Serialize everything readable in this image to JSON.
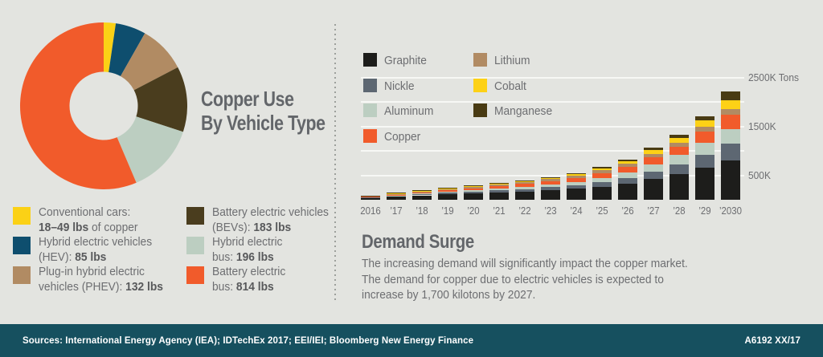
{
  "page": {
    "background": "#e3e4e0",
    "footer_background": "#16505f"
  },
  "donut_section": {
    "title_line1": "Copper Use",
    "title_line2": "By Vehicle Type",
    "legend": [
      {
        "color": "#fbd116",
        "lines": [
          [
            {
              "t": "Conventional cars:",
              "b": false
            }
          ],
          [
            {
              "t": "18–49 lbs",
              "b": true
            },
            {
              "t": " of copper",
              "b": false
            }
          ]
        ]
      },
      {
        "color": "#0e4e6e",
        "lines": [
          [
            {
              "t": "Hybrid electric vehicles",
              "b": false
            }
          ],
          [
            {
              "t": "(HEV): ",
              "b": false
            },
            {
              "t": "85 lbs",
              "b": true
            }
          ]
        ]
      },
      {
        "color": "#b18b63",
        "lines": [
          [
            {
              "t": "Plug-in hybrid electric",
              "b": false
            }
          ],
          [
            {
              "t": "vehicles (PHEV): ",
              "b": false
            },
            {
              "t": "132 lbs",
              "b": true
            }
          ]
        ]
      },
      {
        "color": "#4a3d1e",
        "lines": [
          [
            {
              "t": "Battery electric vehicles",
              "b": false
            }
          ],
          [
            {
              "t": "(BEVs): ",
              "b": false
            },
            {
              "t": "183 lbs",
              "b": true
            }
          ]
        ]
      },
      {
        "color": "#bccec1",
        "lines": [
          [
            {
              "t": "Hybrid electric",
              "b": false
            }
          ],
          [
            {
              "t": "bus: ",
              "b": false
            },
            {
              "t": "196 lbs",
              "b": true
            }
          ]
        ]
      },
      {
        "color": "#f15b2b",
        "lines": [
          [
            {
              "t": "Battery electric",
              "b": false
            }
          ],
          [
            {
              "t": "bus: ",
              "b": false
            },
            {
              "t": "814 lbs",
              "b": true
            }
          ]
        ]
      }
    ]
  },
  "ev_legend": {
    "columns": [
      [
        {
          "label": "Graphite",
          "color": "#1d1d1b"
        },
        {
          "label": "Nickle",
          "color": "#5d6772"
        },
        {
          "label": "Aluminum",
          "color": "#bccec1"
        },
        {
          "label": "Copper",
          "color": "#f15b2b"
        }
      ],
      [
        {
          "label": "Lithium",
          "color": "#b18b63"
        },
        {
          "label": "Cobalt",
          "color": "#fdd116"
        },
        {
          "label": "Manganese",
          "color": "#493b13"
        }
      ]
    ]
  },
  "chart_data": [
    {
      "type": "pie",
      "subtype": "donut",
      "title": "Copper Use By Vehicle Type",
      "labels": [
        "Conventional cars",
        "Hybrid electric vehicles (HEV)",
        "Plug-in hybrid electric vehicles (PHEV)",
        "Battery electric vehicles (BEVs)",
        "Hybrid electric bus",
        "Battery electric bus"
      ],
      "display_values": [
        "18–49 lbs of copper",
        "85 lbs",
        "132 lbs",
        "183 lbs",
        "196 lbs",
        "814 lbs"
      ],
      "values": [
        33.5,
        85,
        132,
        183,
        196,
        814
      ],
      "colors": [
        "#fbd116",
        "#0e4e6e",
        "#b18b63",
        "#4a3d1e",
        "#bccec1",
        "#f15b2b"
      ],
      "start_angle_deg": 0,
      "direction": "clockwise",
      "units": "lbs of copper per vehicle"
    },
    {
      "type": "bar",
      "stacked": true,
      "categories": [
        "2016",
        "’17",
        "’18",
        "’19",
        "’20",
        "’21",
        "’22",
        "’23",
        "’24",
        "’25",
        "’26",
        "’27",
        "’28",
        "’29",
        "’2030"
      ],
      "series": [
        {
          "name": "Graphite",
          "color": "#1d1d1b",
          "values": [
            45,
            65,
            90,
            112,
            130,
            150,
            170,
            195,
            225,
            270,
            330,
            420,
            520,
            660,
            810
          ]
        },
        {
          "name": "Nickle",
          "color": "#5d6772",
          "values": [
            10,
            15,
            22,
            28,
            35,
            42,
            50,
            60,
            75,
            95,
            120,
            160,
            195,
            260,
            345
          ]
        },
        {
          "name": "Aluminum",
          "color": "#bccec1",
          "values": [
            6,
            10,
            15,
            20,
            25,
            32,
            40,
            50,
            62,
            80,
            100,
            140,
            195,
            250,
            295
          ]
        },
        {
          "name": "Copper",
          "color": "#f15b2b",
          "values": [
            8,
            15,
            25,
            33,
            40,
            50,
            60,
            72,
            85,
            100,
            120,
            150,
            180,
            230,
            280
          ]
        },
        {
          "name": "Lithium",
          "color": "#b18b63",
          "values": [
            15,
            22,
            27,
            32,
            35,
            38,
            42,
            45,
            50,
            55,
            62,
            70,
            80,
            90,
            115
          ]
        },
        {
          "name": "Cobalt",
          "color": "#fdd116",
          "values": [
            3,
            7,
            9,
            12,
            15,
            17,
            20,
            23,
            28,
            35,
            48,
            70,
            95,
            125,
            180
          ]
        },
        {
          "name": "Manganese",
          "color": "#493b13",
          "values": [
            3,
            6,
            7,
            8,
            10,
            11,
            13,
            15,
            20,
            30,
            40,
            50,
            65,
            85,
            185
          ]
        }
      ],
      "unit": "K Tons",
      "ylim": [
        0,
        2500
      ],
      "gridlines": [
        500,
        1000,
        1500,
        2000,
        2500
      ],
      "yticks": [
        {
          "value": 2500,
          "label": "2500K Tons"
        },
        {
          "value": 1500,
          "label": "1500K"
        },
        {
          "value": 500,
          "label": "500K"
        }
      ],
      "legend_position": "top-left",
      "grid": true
    }
  ],
  "demand_surge": {
    "heading": "Demand Surge",
    "body_lines": [
      "The increasing demand will significantly impact the copper market.",
      "The demand for copper due to electric vehicles is expected to",
      "increase by 1,700 kilotons by 2027."
    ]
  },
  "footer": {
    "sources": "Sources: International Energy Agency (IEA); IDTechEx 2017; EEI/IEI; Bloomberg New Energy Finance",
    "code": "A6192 XX/17"
  }
}
